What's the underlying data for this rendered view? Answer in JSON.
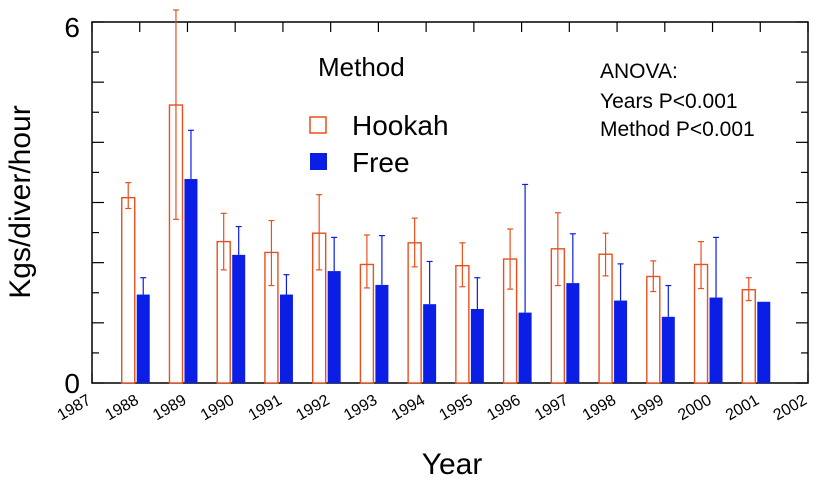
{
  "chart_data": {
    "type": "bar",
    "title": "",
    "xlabel": "Year",
    "ylabel": "Kgs/diver/hour",
    "ylim": [
      0,
      6
    ],
    "xlim": [
      1987,
      2002
    ],
    "x_tick_labels": [
      "1987",
      "1988",
      "1989",
      "1990",
      "1991",
      "1992",
      "1993",
      "1994",
      "1995",
      "1996",
      "1997",
      "1998",
      "1999",
      "2000",
      "2001",
      "2002"
    ],
    "y_tick_labels": [
      "0",
      "6"
    ],
    "legend": {
      "title": "Method",
      "position": "top-center"
    },
    "annotation": [
      "ANOVA:",
      "Years P<0.001",
      "Method P<0.001"
    ],
    "categories": [
      "1988",
      "1989",
      "1990",
      "1991",
      "1992",
      "1993",
      "1994",
      "1995",
      "1996",
      "1997",
      "1998",
      "1999",
      "2000",
      "2001"
    ],
    "series": [
      {
        "name": "Hookah",
        "color": "#e8501e",
        "style": "outline",
        "values": [
          3.08,
          4.62,
          2.35,
          2.17,
          2.49,
          1.97,
          2.33,
          1.95,
          2.06,
          2.23,
          2.14,
          1.77,
          1.97,
          1.55
        ],
        "err_high": [
          3.33,
          6.2,
          2.82,
          2.7,
          3.13,
          2.46,
          2.74,
          2.33,
          2.56,
          2.83,
          2.49,
          2.03,
          2.35,
          1.75
        ],
        "err_low": [
          2.9,
          2.72,
          1.88,
          1.62,
          1.88,
          1.58,
          1.93,
          1.6,
          1.56,
          1.62,
          1.78,
          1.52,
          1.57,
          1.37
        ]
      },
      {
        "name": "Free",
        "color": "#0a1ee6",
        "style": "filled",
        "values": [
          1.47,
          3.39,
          2.13,
          1.47,
          1.86,
          1.63,
          1.31,
          1.23,
          1.17,
          1.66,
          1.37,
          1.1,
          1.42,
          1.35
        ],
        "err_high": [
          1.75,
          4.2,
          2.6,
          1.8,
          2.42,
          2.45,
          2.02,
          1.75,
          3.3,
          2.48,
          1.98,
          1.62,
          2.42,
          1.35
        ],
        "err_low": [
          1.47,
          3.39,
          2.13,
          1.47,
          1.86,
          1.63,
          1.31,
          1.23,
          1.17,
          1.66,
          1.37,
          1.1,
          1.42,
          1.35
        ]
      }
    ],
    "grid": false
  }
}
